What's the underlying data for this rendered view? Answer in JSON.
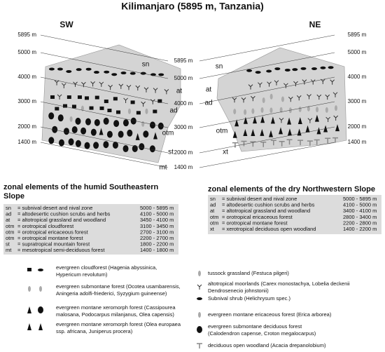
{
  "title": "Kilimanjaro (5895 m, Tanzania)",
  "sides": [
    "SW",
    "NE"
  ],
  "left_scale": [
    "5895 m",
    "5000 m",
    "4000 m",
    "3000 m",
    "2000 m",
    "1400 m"
  ],
  "center_scale": [
    "5895 m",
    "5000 m",
    "4000 m",
    "3000 m",
    "2000 m",
    "1400 m"
  ],
  "right_scale": [
    "5895 m",
    "5000 m",
    "4000 m",
    "3000 m",
    "2000 m",
    "1400 m"
  ],
  "sw_zones": [
    "sn",
    "at",
    "ad",
    "otm",
    "st",
    "mt"
  ],
  "ne_zones": [
    "sn",
    "at",
    "ad",
    "otm",
    "xt"
  ],
  "humid_table": {
    "title": "zonal elements of the humid Southeastern Slope",
    "rows": [
      [
        "sn",
        "= subnival desert and nival zone",
        "5000 - 5895 m"
      ],
      [
        "ad",
        "= altodesertic cushion scrubs and herbs",
        "4100 - 5000 m"
      ],
      [
        "at",
        "= altotropical grassland and woodland",
        "3450 - 4100 m"
      ],
      [
        "otm",
        "= orotropical cloudforest",
        "3100 - 3450 m"
      ],
      [
        "otm",
        "= orotropical ericaceous forest",
        "2700 - 3100 m"
      ],
      [
        "otm",
        "= orotropical montane forest",
        "2200 - 2700 m"
      ],
      [
        "st",
        "= supratropical mountain forest",
        "1800 - 2200 m"
      ],
      [
        "mt",
        "= mesotropical semi-deciduous forest",
        "1400 - 1800 m"
      ]
    ]
  },
  "dry_table": {
    "title": "zonal elements of the dry Northwestern Slope",
    "rows": [
      [
        "sn",
        "= subnival desert and nival zone",
        "5000 - 5895 m"
      ],
      [
        "ad",
        "= altodesertic cushion scrubs and herbs",
        "4100 - 5000 m"
      ],
      [
        "at",
        "= altotropical grassland and woodland",
        "3400 - 4100 m"
      ],
      [
        "otm",
        "= orotropical ericaceous forest",
        "2800 - 3400 m"
      ],
      [
        "otm",
        "= orotropical montane forest",
        "2200 - 2800 m"
      ],
      [
        "xt",
        "= xerotropical deciduous open woodland",
        "1400 - 2200 m"
      ]
    ]
  },
  "legend_left": [
    {
      "lines": [
        "evergreen cloudforest (Hagenia abyssinica,",
        "Hypericum revolutum)"
      ]
    },
    {
      "lines": [
        "evergreen submontane forest (Ocotea usambarensis,",
        "Aningeria adolfi-friederici, Syzygium guineense)"
      ]
    },
    {
      "lines": [
        "evergreen montane xeromorph forest (Cassipourea",
        "malosana, Podocarpus milanjanus, Olea capensis)"
      ]
    },
    {
      "lines": [
        "evergreen montane xeromorph forest (Olea europaea",
        "ssp. africana, Juniperus procera)"
      ]
    }
  ],
  "legend_right": [
    {
      "lines": [
        "tussock grassland (Festuca pilgeri)"
      ]
    },
    {
      "lines": [
        "altotropical moorlands (Carex monostachya, Lobelia deckenii",
        "Dendrosenecio johnstonii)"
      ]
    },
    {
      "lines": [
        "Subnival shrub (Helichrysum spec.)"
      ]
    },
    {
      "lines": [
        "evergreen montane ericaceous forest (Erica arborea)"
      ]
    },
    {
      "lines": [
        "evergreen submontane deciduous forest",
        "(Calodendron capense, Croton megalocarpus)"
      ]
    },
    {
      "lines": [
        "deciduous open woodland (Acacia drepanolobium)"
      ]
    }
  ]
}
